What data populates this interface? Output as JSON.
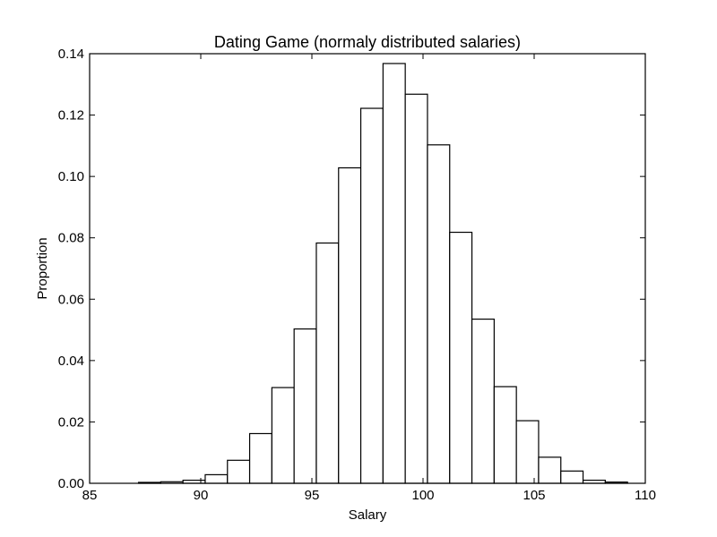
{
  "chart_data": {
    "type": "bar",
    "title": "Dating Game (normaly distributed salaries)",
    "xlabel": "Salary",
    "ylabel": "Proportion",
    "xlim": [
      85,
      110
    ],
    "ylim": [
      0,
      0.14
    ],
    "xticks": [
      85,
      90,
      95,
      100,
      105,
      110
    ],
    "yticks": [
      0.0,
      0.02,
      0.04,
      0.06,
      0.08,
      0.1,
      0.12,
      0.14
    ],
    "ytick_labels": [
      "0.00",
      "0.02",
      "0.04",
      "0.06",
      "0.08",
      "0.10",
      "0.12",
      "0.14"
    ],
    "grid": false,
    "bin_edges": [
      87.2,
      88.2,
      89.2,
      90.2,
      91.2,
      92.2,
      93.2,
      94.2,
      95.2,
      96.2,
      97.2,
      98.2,
      99.2,
      100.2,
      101.2,
      102.2,
      103.2,
      104.2,
      105.2,
      106.2,
      107.2,
      108.2,
      109.2
    ],
    "values": [
      0.0003,
      0.0005,
      0.001,
      0.0028,
      0.0075,
      0.0162,
      0.0312,
      0.0503,
      0.0783,
      0.1028,
      0.1222,
      0.1368,
      0.1268,
      0.1103,
      0.0818,
      0.0535,
      0.0315,
      0.0204,
      0.0085,
      0.004,
      0.001,
      0.0004
    ]
  }
}
